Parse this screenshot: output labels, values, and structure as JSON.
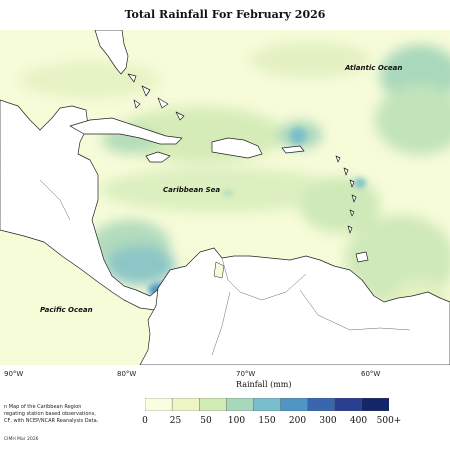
{
  "title": "Total Rainfall For February 2026",
  "ocean_labels": {
    "atlantic": "Atlantic Ocean",
    "caribbean": "Caribbean Sea",
    "pacific": "Pacific Ocean"
  },
  "longitude_labels": [
    "90°W",
    "80°W",
    "70°W",
    "60°W"
  ],
  "legend": {
    "title": "Rainfall (mm)",
    "ticks": [
      "0",
      "25",
      "50",
      "100",
      "150",
      "200",
      "300",
      "400",
      "500+"
    ],
    "colors": [
      "#fbfde0",
      "#eef6c8",
      "#d2ebb4",
      "#a8d8bc",
      "#78bfcb",
      "#4f96c4",
      "#3a66ad",
      "#2b3f91",
      "#152668"
    ]
  },
  "caption_lines": [
    "n Map of the Caribbean Region",
    "regating station based observations,",
    "CF, with NCEP/NCAR Reanalysis Data."
  ],
  "credit": "CIMH Mar 2026",
  "colors": {
    "land": "#ffffff",
    "coastline": "#222222"
  }
}
